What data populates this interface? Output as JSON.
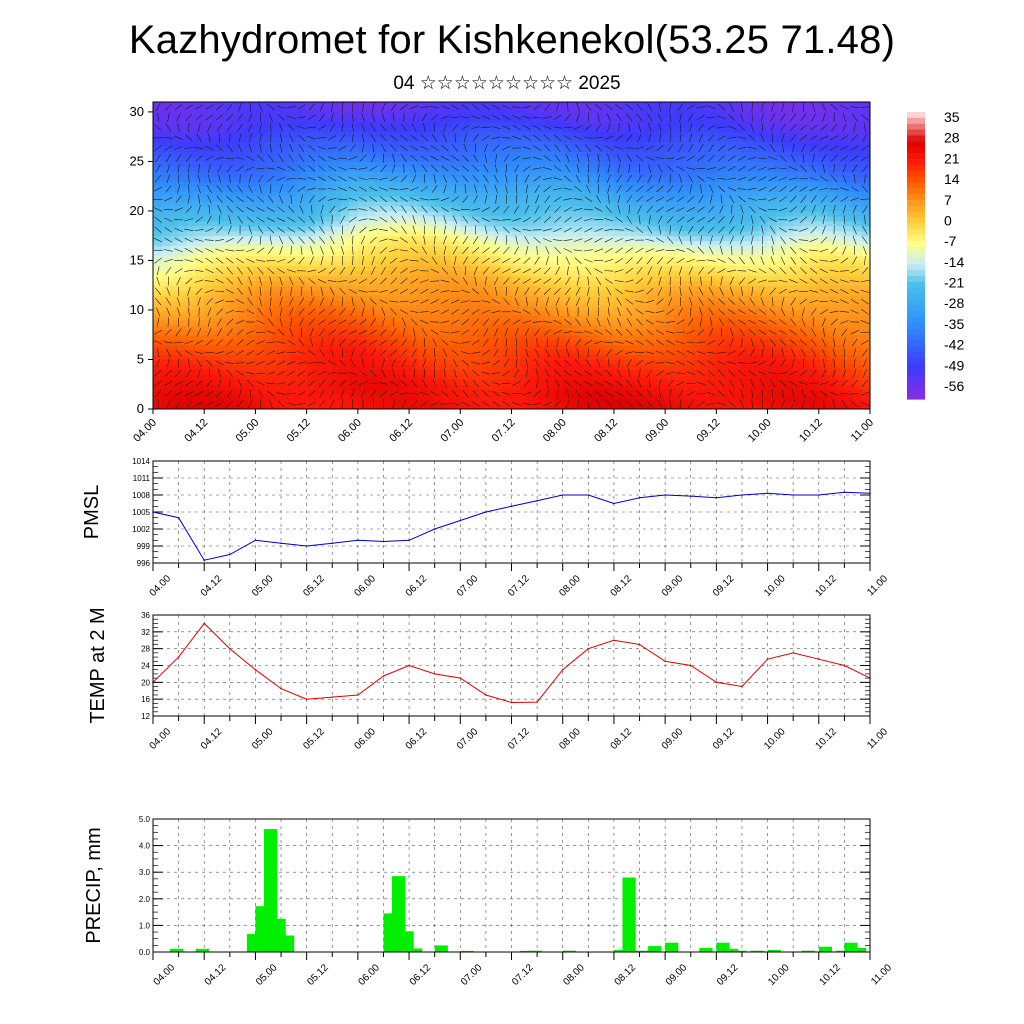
{
  "header": {
    "title": "Kazhydromet for Kishkenekol(53.25 71.48)",
    "subtitle": "04 ☆☆☆☆☆☆☆☆☆ 2025"
  },
  "chart_data": [
    {
      "type": "heatmap",
      "title": "",
      "x_tick_labels": [
        "04.00",
        "04.12",
        "05.00",
        "05.12",
        "06.00",
        "06.12",
        "07.00",
        "07.12",
        "08.00",
        "08.12",
        "09.00",
        "09.12",
        "10.00",
        "10.12",
        "11.00"
      ],
      "x_range": [
        0,
        84
      ],
      "ylim": [
        0,
        31
      ],
      "y_ticks": [
        0,
        5,
        10,
        15,
        20,
        25,
        30
      ],
      "colorbar_labels": [
        "35",
        "28",
        "21",
        "14",
        "7",
        "0",
        "-7",
        "-14",
        "-21",
        "-28",
        "-35",
        "-42",
        "-49",
        "-56"
      ],
      "colorbar_range": [
        -60,
        38
      ],
      "color_stops": [
        {
          "value": -60,
          "color": "#8a2be2"
        },
        {
          "value": -49,
          "color": "#3c3cff"
        },
        {
          "value": -35,
          "color": "#2f8cff"
        },
        {
          "value": -21,
          "color": "#4ac0ea"
        },
        {
          "value": -14,
          "color": "#c8eef5"
        },
        {
          "value": -7,
          "color": "#ffff8a"
        },
        {
          "value": 0,
          "color": "#ffd23c"
        },
        {
          "value": 7,
          "color": "#ff9a1e"
        },
        {
          "value": 14,
          "color": "#ff5a00"
        },
        {
          "value": 21,
          "color": "#ff1a0a"
        },
        {
          "value": 28,
          "color": "#dc0000"
        },
        {
          "value": 35,
          "color": "#f4a0a0"
        },
        {
          "value": 38,
          "color": "#fff0f0"
        }
      ],
      "temperature_by_height": [
        {
          "y": 0,
          "t": 24
        },
        {
          "y": 4,
          "t": 18
        },
        {
          "y": 8,
          "t": 10
        },
        {
          "y": 11,
          "t": 4
        },
        {
          "y": 13,
          "t": -2
        },
        {
          "y": 15,
          "t": -8
        },
        {
          "y": 17,
          "t": -17
        },
        {
          "y": 20,
          "t": -26
        },
        {
          "y": 23,
          "t": -38
        },
        {
          "y": 26,
          "t": -46
        },
        {
          "y": 28,
          "t": -52
        },
        {
          "y": 31,
          "t": -55
        }
      ],
      "level_15_height_by_time": [
        {
          "x": 0,
          "h": 15
        },
        {
          "x": 6,
          "h": 15.5
        },
        {
          "x": 18,
          "h": 16.5
        },
        {
          "x": 24,
          "h": 17.5
        },
        {
          "x": 30,
          "h": 17.5
        },
        {
          "x": 36,
          "h": 17
        },
        {
          "x": 42,
          "h": 16.5
        },
        {
          "x": 48,
          "h": 16.5
        },
        {
          "x": 54,
          "h": 15.8
        },
        {
          "x": 60,
          "h": 15.8
        },
        {
          "x": 66,
          "h": 16
        },
        {
          "x": 72,
          "h": 16
        },
        {
          "x": 78,
          "h": 16
        },
        {
          "x": 84,
          "h": 15
        }
      ],
      "wind_vectors": true
    },
    {
      "type": "line",
      "ylabel": "PMSL",
      "x_tick_labels": [
        "04.00",
        "04.12",
        "05.00",
        "05.12",
        "06.00",
        "06.12",
        "07.00",
        "07.12",
        "08.00",
        "08.12",
        "09.00",
        "09.12",
        "10.00",
        "10.12",
        "11.00"
      ],
      "x": [
        0,
        3,
        6,
        9,
        12,
        15,
        18,
        21,
        24,
        27,
        30,
        33,
        36,
        39,
        42,
        45,
        48,
        51,
        54,
        57,
        60,
        63,
        66,
        69,
        72,
        75,
        78,
        81,
        84
      ],
      "ylim": [
        996,
        1014
      ],
      "y_ticks": [
        996,
        999,
        1002,
        1005,
        1008,
        1011,
        1014
      ],
      "color": "#0000cc",
      "series": [
        {
          "values": [
            1005,
            1004,
            996.5,
            997.5,
            1000,
            999.5,
            999,
            999.5,
            1000,
            999.8,
            1000,
            1002,
            1003.5,
            1005,
            1006,
            1007,
            1008,
            1008,
            1006.5,
            1007.5,
            1008,
            1007.8,
            1007.5,
            1008,
            1008.3,
            1008,
            1008,
            1008.5,
            1008.3
          ]
        }
      ]
    },
    {
      "type": "line",
      "ylabel": "TEMP at 2 M",
      "x_tick_labels": [
        "04.00",
        "04.12",
        "05.00",
        "05.12",
        "06.00",
        "06.12",
        "07.00",
        "07.12",
        "08.00",
        "08.12",
        "09.00",
        "09.12",
        "10.00",
        "10.12",
        "11.00"
      ],
      "x": [
        0,
        3,
        6,
        9,
        12,
        15,
        18,
        21,
        24,
        27,
        30,
        33,
        36,
        39,
        42,
        45,
        48,
        51,
        54,
        57,
        60,
        63,
        66,
        69,
        72,
        75,
        78,
        81,
        84
      ],
      "ylim": [
        12,
        36
      ],
      "y_ticks": [
        12,
        16,
        20,
        24,
        28,
        32,
        36
      ],
      "color": "#dd0000",
      "series": [
        {
          "values": [
            20,
            26,
            34,
            28,
            23,
            18.5,
            16,
            16.5,
            17,
            21.5,
            24,
            22,
            21,
            17,
            15.2,
            15.3,
            23,
            28,
            30,
            29,
            25,
            24,
            20,
            19,
            25.5,
            27,
            25.5,
            24,
            21
          ]
        }
      ]
    },
    {
      "type": "bar",
      "ylabel": "PRECIP, mm",
      "x_tick_labels": [
        "04.00",
        "04.12",
        "05.00",
        "05.12",
        "06.00",
        "06.12",
        "07.00",
        "07.12",
        "08.00",
        "08.12",
        "09.00",
        "09.12",
        "10.00",
        "10.12",
        "11.00"
      ],
      "ylim": [
        0,
        5
      ],
      "y_tick_labels": [
        "0.0",
        "1.0",
        "2.0",
        "3.0",
        "4.0",
        "5.0"
      ],
      "color": "#00ee00",
      "x": [
        2,
        5,
        11,
        12,
        13,
        14,
        15,
        18,
        27,
        28,
        29,
        30,
        33,
        34,
        36,
        43,
        44,
        48,
        54,
        55,
        56,
        57,
        58,
        60,
        64,
        66,
        67,
        68,
        70,
        72,
        76,
        78,
        80,
        81,
        82
      ],
      "values": [
        0.12,
        0.12,
        0.68,
        1.72,
        4.62,
        1.25,
        0.62,
        0.02,
        1.45,
        2.85,
        0.78,
        0.13,
        0.25,
        0.02,
        0.04,
        0.04,
        0.05,
        0.05,
        0.08,
        2.8,
        0.05,
        0.04,
        0.22,
        0.35,
        0.15,
        0.35,
        0.12,
        0.05,
        0.05,
        0.08,
        0.05,
        0.2,
        0.05,
        0.35,
        0.15
      ]
    }
  ]
}
